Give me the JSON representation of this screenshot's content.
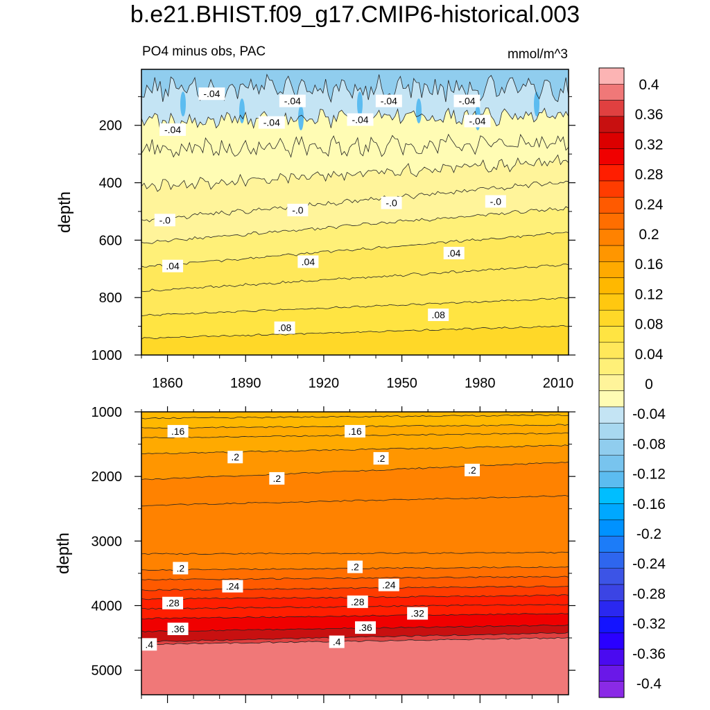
{
  "title": "b.e21.BHIST.f09_g17.CMIP6-historical.003",
  "left_string": "PO4 minus obs, PAC",
  "right_string": "mmol/m^3",
  "colorbar": {
    "levels": [
      "0.4",
      "0.36",
      "0.32",
      "0.28",
      "0.24",
      "0.2",
      "0.16",
      "0.12",
      "0.08",
      "0.04",
      "0",
      "-0.04",
      "-0.08",
      "-0.12",
      "-0.16",
      "-0.2",
      "-0.24",
      "-0.28",
      "-0.32",
      "-0.36",
      "-0.4"
    ],
    "colors": [
      "#fcb4b4",
      "#f07878",
      "#e04040",
      "#c81010",
      "#dc0000",
      "#f00000",
      "#ff1e00",
      "#ff3c00",
      "#ff5a00",
      "#ff6e00",
      "#ff8200",
      "#ff9600",
      "#ffaa00",
      "#ffb800",
      "#ffc810",
      "#ffd828",
      "#ffe442",
      "#ffe85a",
      "#fff078",
      "#fff49a",
      "#fffcb4",
      "#c4e4f4",
      "#a8d8f0",
      "#90cdee",
      "#78c4ee",
      "#5cbcf0",
      "#00beff",
      "#00a8ff",
      "#0092ff",
      "#1c7cf8",
      "#2e66ee",
      "#3c54e6",
      "#3b44e4",
      "#2a28f0",
      "#1414ff",
      "#2a00ff",
      "#4a0af0",
      "#6a18e8",
      "#8a2ae6"
    ]
  },
  "chart_data": [
    {
      "type": "contour",
      "panel": "upper",
      "ylabel": "depth",
      "x_ticks": [
        1860,
        1890,
        1920,
        1950,
        1980,
        2010
      ],
      "y_ticks": [
        200,
        400,
        600,
        800,
        1000
      ],
      "xlim": [
        1850,
        2014
      ],
      "ylim": [
        1000,
        5
      ],
      "y_reversed": true,
      "contour_labels": [
        {
          "text": "-.04",
          "x": 1877,
          "y": 90
        },
        {
          "text": "-.04",
          "x": 1908,
          "y": 115
        },
        {
          "text": "-.04",
          "x": 1945,
          "y": 115
        },
        {
          "text": "-.04",
          "x": 1975,
          "y": 115
        },
        {
          "text": "-.04",
          "x": 1862,
          "y": 215
        },
        {
          "text": "-.04",
          "x": 1900,
          "y": 190
        },
        {
          "text": "-.04",
          "x": 1934,
          "y": 180
        },
        {
          "text": "-.04",
          "x": 1979,
          "y": 185
        },
        {
          "text": "-.0",
          "x": 1859,
          "y": 530
        },
        {
          "text": "-.0",
          "x": 1910,
          "y": 495
        },
        {
          "text": "-.0",
          "x": 1946,
          "y": 470
        },
        {
          "text": "-.0",
          "x": 1986,
          "y": 465
        },
        {
          "text": ".04",
          "x": 1862,
          "y": 690
        },
        {
          "text": ".04",
          "x": 1914,
          "y": 675
        },
        {
          "text": ".04",
          "x": 1970,
          "y": 645
        },
        {
          "text": ".08",
          "x": 1905,
          "y": 905
        },
        {
          "text": ".08",
          "x": 1964,
          "y": 860
        }
      ],
      "contour_levels": [
        -0.04,
        -0.02,
        0,
        0.02,
        0.04,
        0.06,
        0.08,
        0.1
      ]
    },
    {
      "type": "contour",
      "panel": "lower",
      "ylabel": "depth",
      "y_ticks": [
        1000,
        2000,
        3000,
        4000,
        5000
      ],
      "xlim": [
        1850,
        2014
      ],
      "ylim": [
        5380,
        1000
      ],
      "y_reversed": true,
      "contour_labels": [
        {
          "text": ".16",
          "x": 1864,
          "y": 1300
        },
        {
          "text": ".16",
          "x": 1932,
          "y": 1300
        },
        {
          "text": ".2",
          "x": 1886,
          "y": 1700
        },
        {
          "text": ".2",
          "x": 1942,
          "y": 1720
        },
        {
          "text": ".2",
          "x": 1977,
          "y": 1900
        },
        {
          "text": ".2",
          "x": 1902,
          "y": 2030
        },
        {
          "text": ".2",
          "x": 1865,
          "y": 3420
        },
        {
          "text": ".2",
          "x": 1932,
          "y": 3400
        },
        {
          "text": ".24",
          "x": 1885,
          "y": 3700
        },
        {
          "text": ".24",
          "x": 1945,
          "y": 3680
        },
        {
          "text": ".28",
          "x": 1862,
          "y": 3960
        },
        {
          "text": ".28",
          "x": 1933,
          "y": 3940
        },
        {
          "text": ".32",
          "x": 1956,
          "y": 4120
        },
        {
          "text": ".36",
          "x": 1864,
          "y": 4360
        },
        {
          "text": ".36",
          "x": 1936,
          "y": 4340
        },
        {
          "text": ".4",
          "x": 1853,
          "y": 4600
        },
        {
          "text": ".4",
          "x": 1925,
          "y": 4560
        }
      ],
      "contour_levels": [
        0.14,
        0.16,
        0.18,
        0.2,
        0.22,
        0.24,
        0.26,
        0.28,
        0.3,
        0.32,
        0.34,
        0.36,
        0.38,
        0.4
      ]
    }
  ]
}
